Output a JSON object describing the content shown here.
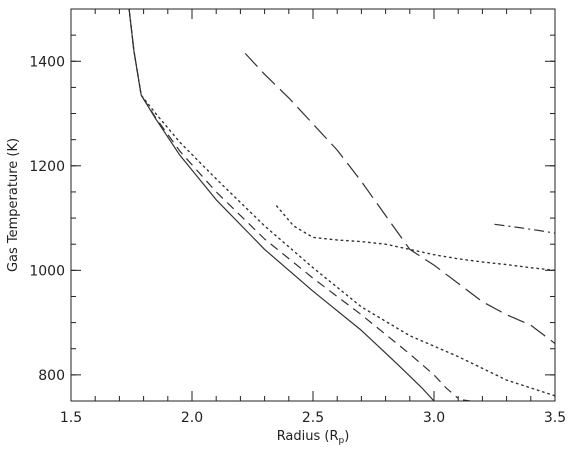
{
  "chart_data": {
    "type": "line",
    "xlabel": "Radius (R",
    "xlabel_subscript": "p",
    "xlabel_close": ")",
    "ylabel": "Gas Temperature (K)",
    "xlim": [
      1.5,
      3.5
    ],
    "ylim": [
      750,
      1500
    ],
    "grid": false,
    "x_ticks": [
      1.5,
      2.0,
      2.5,
      3.0,
      3.5
    ],
    "x_tick_labels": [
      "1.5",
      "2.0",
      "2.5",
      "3.0",
      "3.5"
    ],
    "y_ticks": [
      800,
      1000,
      1200,
      1400
    ],
    "y_tick_labels": [
      "800",
      "1000",
      "1200",
      "1400"
    ],
    "series": [
      {
        "style": "solid",
        "x": [
          1.74,
          1.76,
          1.79,
          1.85,
          1.95,
          2.1,
          2.3,
          2.5,
          2.7,
          2.85,
          2.95,
          3.0
        ],
        "y": [
          1500,
          1420,
          1335,
          1290,
          1220,
          1135,
          1040,
          960,
          885,
          820,
          775,
          750
        ]
      },
      {
        "style": "dashed",
        "x": [
          1.74,
          1.76,
          1.79,
          1.85,
          1.95,
          2.1,
          2.3,
          2.5,
          2.7,
          2.9,
          3.0,
          3.05,
          3.1
        ],
        "y": [
          1500,
          1420,
          1335,
          1292,
          1228,
          1150,
          1060,
          985,
          915,
          840,
          800,
          775,
          755
        ]
      },
      {
        "style": "dashed",
        "x": [
          3.12,
          3.15
        ],
        "y": [
          752,
          750
        ]
      },
      {
        "style": "dotted",
        "x": [
          1.74,
          1.76,
          1.79,
          1.85,
          1.95,
          2.1,
          2.3,
          2.5,
          2.7,
          2.9,
          3.1,
          3.3,
          3.5
        ],
        "y": [
          1500,
          1420,
          1335,
          1300,
          1245,
          1175,
          1085,
          1005,
          930,
          875,
          835,
          790,
          760
        ]
      },
      {
        "style": "longdash",
        "x": [
          2.22,
          2.3,
          2.4,
          2.5,
          2.6,
          2.7,
          2.8,
          2.9,
          3.0,
          3.1,
          3.2,
          3.3,
          3.4,
          3.5
        ],
        "y": [
          1415,
          1375,
          1330,
          1280,
          1230,
          1170,
          1105,
          1040,
          1010,
          975,
          940,
          915,
          895,
          860
        ]
      },
      {
        "style": "dotted",
        "x": [
          2.35,
          2.42,
          2.5,
          2.6,
          2.7,
          2.8,
          2.9,
          3.0,
          3.1,
          3.2,
          3.3,
          3.4,
          3.5
        ],
        "y": [
          1123,
          1085,
          1063,
          1058,
          1055,
          1050,
          1040,
          1030,
          1022,
          1016,
          1011,
          1005,
          1000
        ]
      },
      {
        "style": "dashdot",
        "x": [
          3.25,
          3.35,
          3.45,
          3.5
        ],
        "y": [
          1088,
          1082,
          1075,
          1071
        ]
      }
    ]
  }
}
